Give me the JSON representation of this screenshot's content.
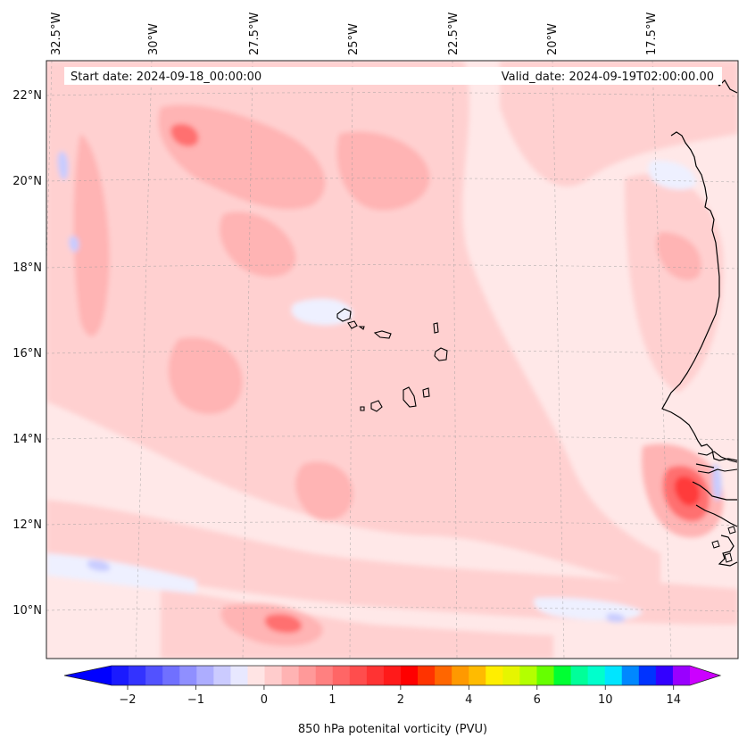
{
  "map": {
    "start_date": "Start date: 2024-09-18_00:00:00",
    "valid_date": "Valid_date: 2024-09-19T02:00:00.00",
    "lon_labels": [
      "32.5°W",
      "30°W",
      "27.5°W",
      "25°W",
      "22.5°W",
      "20°W",
      "17.5°W"
    ],
    "lat_labels": [
      "22°N",
      "20°N",
      "18°N",
      "16°N",
      "14°N",
      "12°N",
      "10°N"
    ],
    "extent": {
      "lon_min": -33.0,
      "lon_max": -15.6,
      "lat_min": 8.9,
      "lat_max": 22.8
    }
  },
  "colorbar": {
    "label": "850 hPa potenital vorticity (PVU)",
    "ticks": [
      "−2",
      "−1",
      "0",
      "1",
      "2",
      "4",
      "6",
      "10",
      "14"
    ],
    "tick_slots": [
      0,
      4,
      8,
      12,
      16,
      20,
      24,
      28,
      32
    ],
    "colors": [
      "#1a1aff",
      "#3333ff",
      "#5252ff",
      "#7070ff",
      "#8f8fff",
      "#adadff",
      "#cbcbff",
      "#e8e8ff",
      "#ffe4e4",
      "#ffcccc",
      "#ffb3b3",
      "#ff9999",
      "#ff8080",
      "#ff6666",
      "#ff4d4d",
      "#ff3333",
      "#ff1a1a",
      "#ff0000",
      "#ff3300",
      "#ff6600",
      "#ff9900",
      "#ffbb00",
      "#ffee00",
      "#e6f500",
      "#b3ff00",
      "#66ff00",
      "#00ff33",
      "#00ff99",
      "#00ffcc",
      "#00e5ff",
      "#0088ff",
      "#0033ff",
      "#3300ff",
      "#9900ff"
    ],
    "under_color": "#0000ff",
    "over_color": "#cc00ff"
  },
  "colors": {
    "background_pink": "#ffe8e8",
    "light_pink": "#ffd0d0",
    "mid_pink": "#ffb4b4",
    "strong_red": "#ff7070",
    "peak_red": "#ff3a3a",
    "light_blue": "#eef0ff",
    "blue": "#c8ccff"
  }
}
